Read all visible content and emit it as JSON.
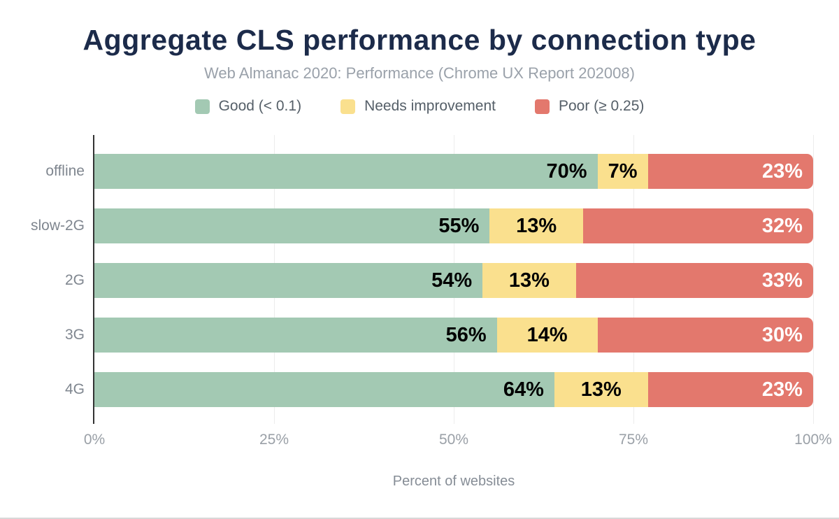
{
  "chart_data": {
    "type": "bar",
    "orientation": "horizontal",
    "stacked": true,
    "title": "Aggregate CLS performance by connection type",
    "subtitle": "Web Almanac 2020: Performance (Chrome UX Report 202008)",
    "categories": [
      "offline",
      "slow-2G",
      "2G",
      "3G",
      "4G"
    ],
    "series": [
      {
        "name": "Good (< 0.1)",
        "color": "#a3c9b3",
        "values": [
          70,
          55,
          54,
          56,
          64
        ],
        "label_color": "#000000",
        "label_align": "right"
      },
      {
        "name": "Needs improvement",
        "color": "#fae08e",
        "values": [
          7,
          13,
          13,
          14,
          13
        ],
        "label_color": "#000000",
        "label_align": "center"
      },
      {
        "name": "Poor (≥ 0.25)",
        "color": "#e3786d",
        "values": [
          23,
          32,
          33,
          30,
          23
        ],
        "label_color": "#ffffff",
        "label_align": "right"
      }
    ],
    "value_suffix": "%",
    "xlabel": "Percent of websites",
    "xticks": [
      {
        "label": "0%",
        "value": 0
      },
      {
        "label": "25%",
        "value": 25
      },
      {
        "label": "50%",
        "value": 50
      },
      {
        "label": "75%",
        "value": 75
      },
      {
        "label": "100%",
        "value": 100
      }
    ],
    "xlim": [
      0,
      100
    ],
    "grid": true,
    "legend_position": "top",
    "colors": {
      "title": "#1c2b4a",
      "subtitle": "#9aa1aa",
      "axis_line": "#333333",
      "gridline": "#ececec",
      "tick_text": "#9aa0a7"
    }
  }
}
